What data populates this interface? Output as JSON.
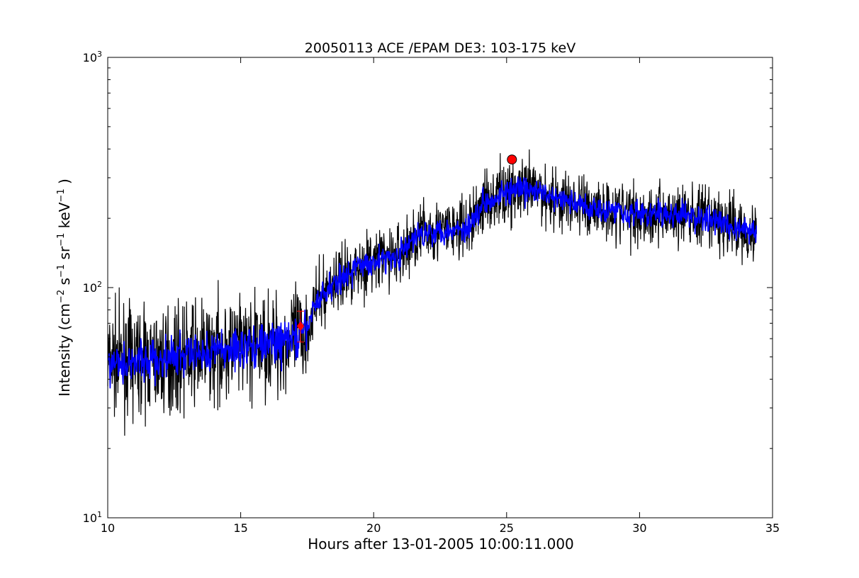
{
  "chart_data": {
    "type": "line",
    "title": "20050113 ACE /EPAM DE3: 103-175 keV",
    "xlabel": "Hours after 13-01-2005 10:00:11.000",
    "ylabel_parts": {
      "prefix": "Intensity (cm",
      "exp1": "−2",
      "s": " s",
      "exp2": "−1",
      "sr": " sr",
      "exp3": "−1",
      "kev": " keV",
      "exp4": "−1",
      "suffix": " )"
    },
    "xlim": [
      10,
      35
    ],
    "ylim": [
      10,
      1000
    ],
    "yscale": "log",
    "x_ticks": [
      10,
      15,
      20,
      25,
      30,
      35
    ],
    "y_ticks": [
      {
        "value": 10,
        "base": "10",
        "exp": "1"
      },
      {
        "value": 100,
        "base": "10",
        "exp": "2"
      },
      {
        "value": 1000,
        "base": "10",
        "exp": "3"
      }
    ],
    "grid": false,
    "series": [
      {
        "color": "#000000",
        "style": "raw",
        "profile": [
          [
            10.0,
            48
          ],
          [
            12.0,
            48
          ],
          [
            13.5,
            52
          ],
          [
            15.0,
            55
          ],
          [
            16.5,
            58
          ],
          [
            17.4,
            62
          ],
          [
            17.8,
            85
          ],
          [
            18.5,
            105
          ],
          [
            19.5,
            125
          ],
          [
            21.0,
            140
          ],
          [
            21.8,
            175
          ],
          [
            23.5,
            180
          ],
          [
            24.2,
            240
          ],
          [
            25.0,
            260
          ],
          [
            26.0,
            265
          ],
          [
            27.0,
            240
          ],
          [
            28.0,
            225
          ],
          [
            30.0,
            210
          ],
          [
            32.0,
            205
          ],
          [
            33.5,
            185
          ],
          [
            34.4,
            170
          ]
        ]
      },
      {
        "color": "#0000ff",
        "style": "smoothed",
        "profile": [
          [
            10.0,
            48
          ],
          [
            12.0,
            48
          ],
          [
            13.5,
            52
          ],
          [
            15.0,
            55
          ],
          [
            16.5,
            58
          ],
          [
            17.4,
            62
          ],
          [
            17.8,
            85
          ],
          [
            18.5,
            105
          ],
          [
            19.5,
            125
          ],
          [
            21.0,
            140
          ],
          [
            21.8,
            175
          ],
          [
            23.5,
            180
          ],
          [
            24.2,
            240
          ],
          [
            25.0,
            260
          ],
          [
            26.0,
            265
          ],
          [
            27.0,
            240
          ],
          [
            28.0,
            225
          ],
          [
            30.0,
            210
          ],
          [
            32.0,
            205
          ],
          [
            33.5,
            185
          ],
          [
            34.4,
            170
          ]
        ]
      }
    ],
    "markers": [
      {
        "x": 17.25,
        "y": 68,
        "color": "#ff0000",
        "shape": "diamond-errorbar",
        "err_low": 58,
        "err_high": 79
      },
      {
        "x": 25.2,
        "y": 360,
        "color": "#ff0000",
        "shape": "circle"
      }
    ]
  }
}
